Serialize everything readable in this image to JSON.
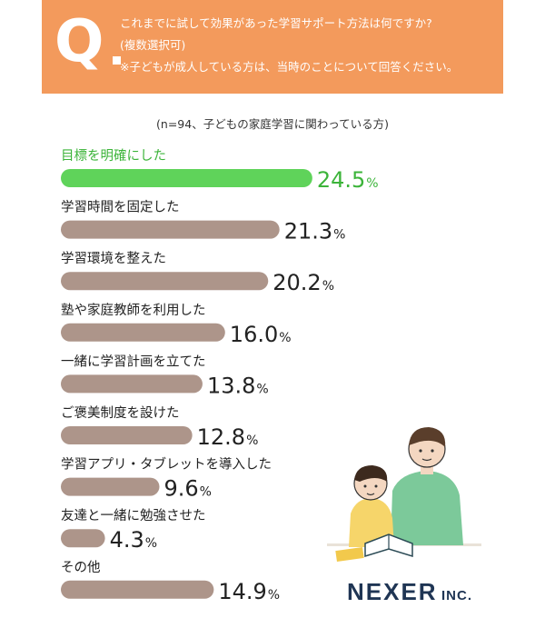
{
  "header": {
    "q_mark": "Q",
    "question": "これまでに試して効果があった学習サポート方法は何ですか?",
    "multi": "(複数選択可)",
    "note": "※子どもが成人している方は、当時のことについて回答ください。"
  },
  "sample_note": "(n=94、子どもの家庭学習に関わっている方)",
  "chart_data": {
    "type": "bar",
    "orientation": "horizontal",
    "title": "",
    "xlabel": "",
    "ylabel": "",
    "xlim": [
      0,
      26
    ],
    "grid": false,
    "value_suffix": "%",
    "categories": [
      "目標を明確にした",
      "学習時間を固定した",
      "学習環境を整えた",
      "塾や家庭教師を利用した",
      "一緒に学習計画を立てた",
      "ご褒美制度を設けた",
      "学習アプリ・タブレットを導入した",
      "友達と一緒に勉強させた",
      "その他"
    ],
    "values": [
      24.5,
      21.3,
      20.2,
      16.0,
      13.8,
      12.8,
      9.6,
      4.3,
      14.9
    ],
    "value_labels": [
      "24.5",
      "21.3",
      "20.2",
      "16.0",
      "13.8",
      "12.8",
      "9.6",
      "4.3",
      "14.9"
    ],
    "colors": {
      "highlight": "#5fd35a",
      "highlight_label": "#3cb43a",
      "bar": "#ad958a",
      "label": "#222222"
    },
    "highlight_index": 0
  },
  "brand": {
    "name": "NEXER",
    "suffix": "INC.",
    "color": "#1f3554"
  },
  "illustration": "parent-and-child-reading-illustration"
}
